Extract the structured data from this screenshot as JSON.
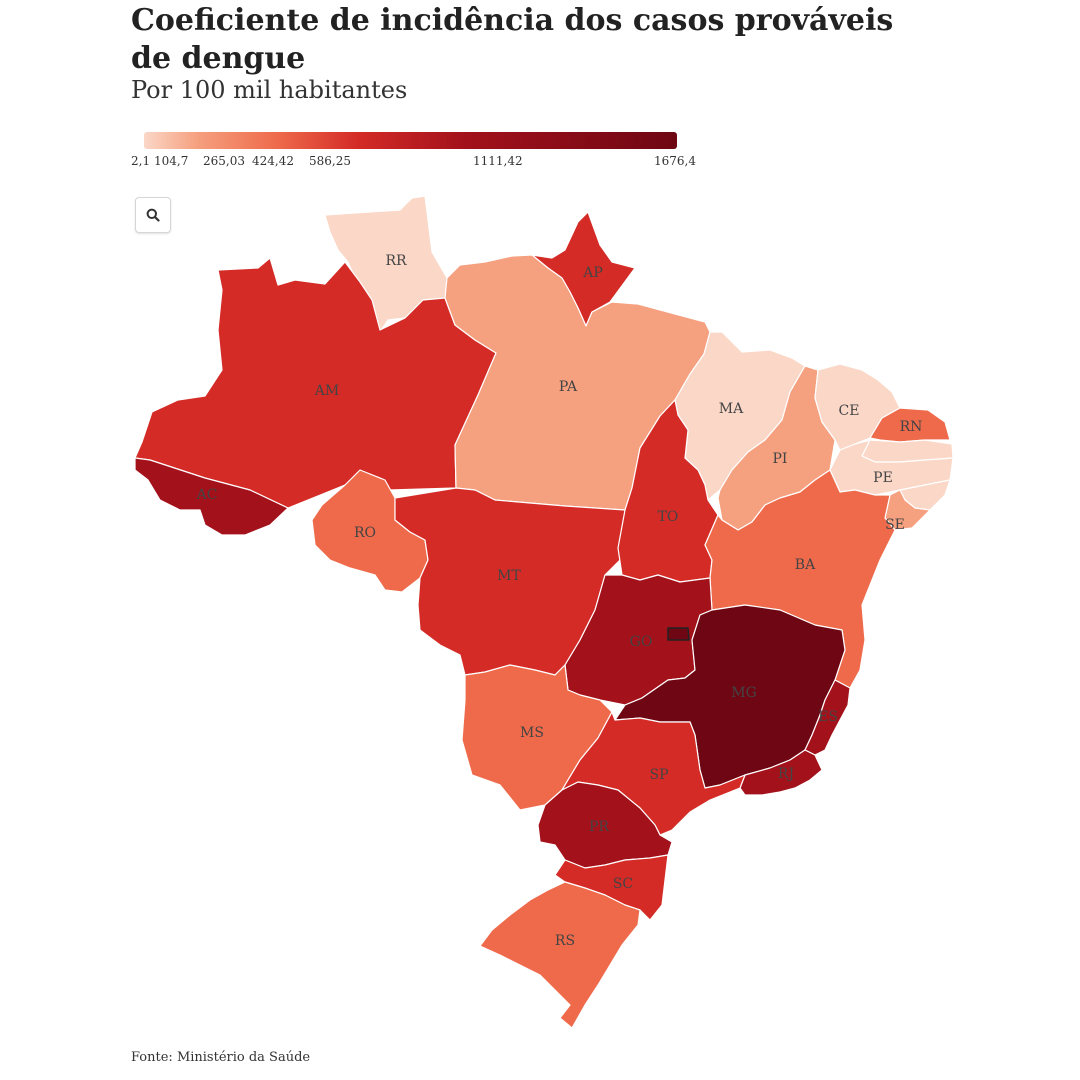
{
  "header": {
    "title": "Coeficiente de incidência dos casos prováveis de dengue",
    "subtitle": "Por 100 mil habitantes"
  },
  "legend": {
    "ticks": [
      "2,1",
      "104,7",
      "265,03",
      "424,42",
      "586,25",
      "1111,42",
      "1676,4"
    ],
    "tick_values": [
      2.1,
      104.7,
      265.03,
      424.42,
      586.25,
      1111.42,
      1676.4
    ],
    "colors": [
      "#fbd7c7",
      "#f5a07f",
      "#ee6a4b",
      "#d42b27",
      "#a3111b",
      "#6e0713"
    ]
  },
  "controls": {
    "zoom_icon": "search-icon"
  },
  "states": [
    {
      "id": "RR",
      "class": 0
    },
    {
      "id": "AP",
      "class": 3
    },
    {
      "id": "AM",
      "class": 3
    },
    {
      "id": "PA",
      "class": 1
    },
    {
      "id": "MA",
      "class": 0
    },
    {
      "id": "CE",
      "class": 0
    },
    {
      "id": "RN",
      "class": 2
    },
    {
      "id": "PB",
      "class": 0
    },
    {
      "id": "PE",
      "class": 0
    },
    {
      "id": "AL",
      "class": 0
    },
    {
      "id": "SE",
      "class": 1
    },
    {
      "id": "PI",
      "class": 1
    },
    {
      "id": "AC",
      "class": 4
    },
    {
      "id": "RO",
      "class": 2
    },
    {
      "id": "MT",
      "class": 3
    },
    {
      "id": "TO",
      "class": 3
    },
    {
      "id": "BA",
      "class": 2
    },
    {
      "id": "GO",
      "class": 4
    },
    {
      "id": "DF",
      "class": 5
    },
    {
      "id": "MG",
      "class": 5
    },
    {
      "id": "ES",
      "class": 4
    },
    {
      "id": "RJ",
      "class": 4
    },
    {
      "id": "MS",
      "class": 2
    },
    {
      "id": "SP",
      "class": 3
    },
    {
      "id": "PR",
      "class": 4
    },
    {
      "id": "SC",
      "class": 3
    },
    {
      "id": "RS",
      "class": 2
    }
  ],
  "footer": {
    "source": "Fonte: Ministério da Saúde"
  }
}
